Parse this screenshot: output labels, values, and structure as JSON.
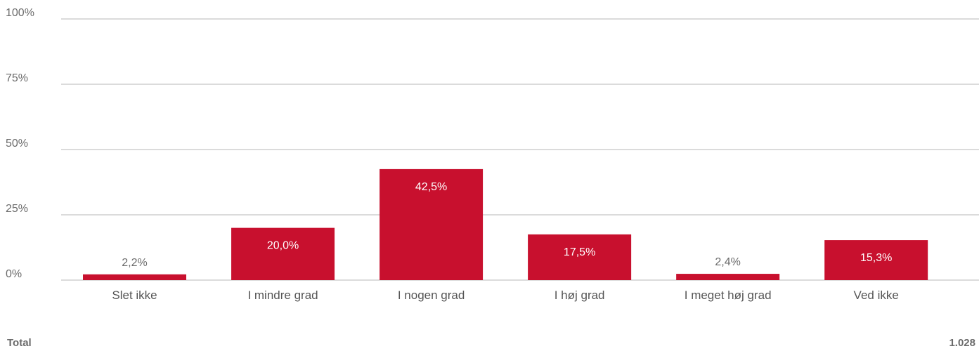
{
  "chart_data": {
    "type": "bar",
    "categories": [
      "Slet ikke",
      "I mindre grad",
      "I nogen grad",
      "I høj grad",
      "I meget høj grad",
      "Ved ikke"
    ],
    "values": [
      2.2,
      20.0,
      42.5,
      17.5,
      2.4,
      15.3
    ],
    "value_labels": [
      "2,2%",
      "20,0%",
      "42,5%",
      "17,5%",
      "2,4%",
      "15,3%"
    ],
    "y_ticks": [
      0,
      25,
      50,
      75,
      100
    ],
    "y_tick_labels": [
      "0%",
      "25%",
      "50%",
      "75%",
      "100%"
    ],
    "ylim": [
      0,
      100
    ],
    "grid": true,
    "bar_color": "#c8102e",
    "title": "",
    "xlabel": "",
    "ylabel": ""
  },
  "footer": {
    "total_label": "Total",
    "total_value": "1.028"
  }
}
